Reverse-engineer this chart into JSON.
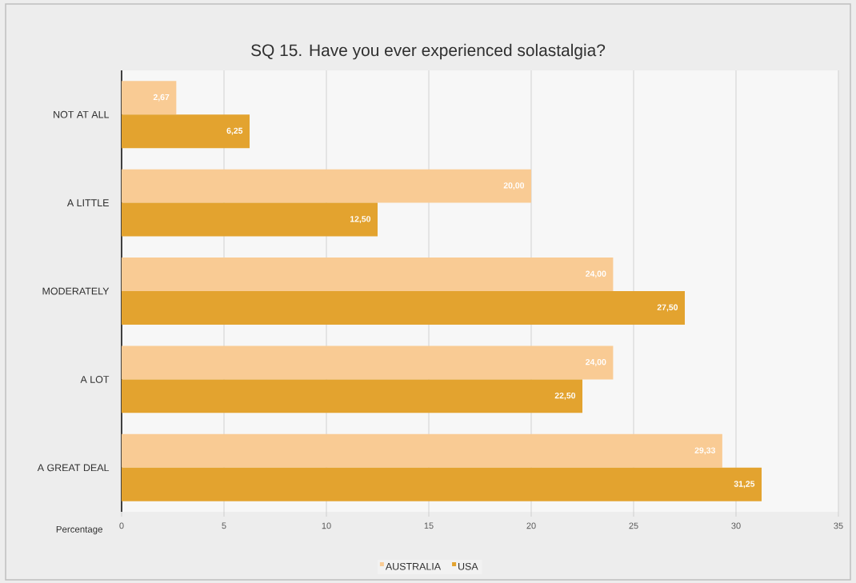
{
  "chart_data": {
    "type": "bar",
    "orientation": "horizontal",
    "title": "SQ 15. Have you ever experienced solastalgia?",
    "xlabel": "Percentage",
    "categories": [
      "NOT AT ALL",
      "A LITTLE",
      "MODERATELY",
      "A LOT",
      "A GREAT DEAL"
    ],
    "series": [
      {
        "name": "AUSTRALIA",
        "color": "#F9CB94",
        "values": [
          2.67,
          20,
          24,
          24,
          29.33
        ],
        "value_labels": [
          "2,67",
          "20,00",
          "24,00",
          "24,00",
          "29,33"
        ]
      },
      {
        "name": "USA",
        "color": "#E3A32F",
        "values": [
          6.25,
          12.5,
          27.5,
          22.5,
          31.25
        ],
        "value_labels": [
          "6,25",
          "12,50",
          "27,50",
          "22,50",
          "31,25"
        ]
      }
    ],
    "xlim": [
      0,
      35
    ],
    "xticks": [
      0,
      5,
      10,
      15,
      20,
      25,
      30,
      35
    ],
    "grid": "x",
    "legend": "bottom"
  }
}
